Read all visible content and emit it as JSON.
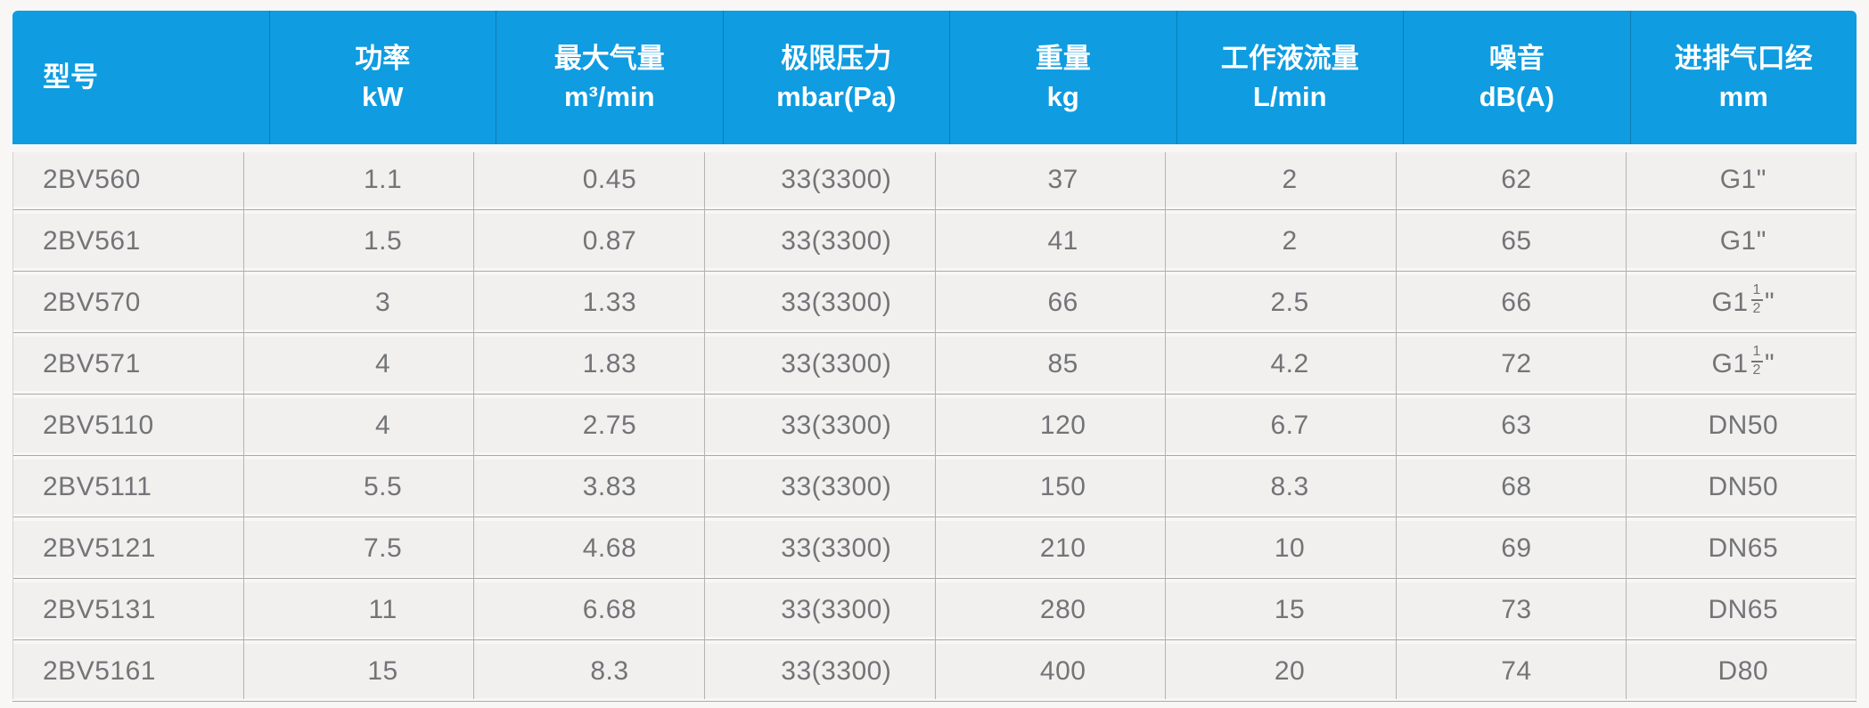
{
  "table": {
    "title_semantic": "2BV vacuum pump specification table",
    "columns": [
      {
        "id": "model",
        "line1": "型号",
        "line2": "",
        "align": "left"
      },
      {
        "id": "power",
        "line1": "功率",
        "line2": "kW",
        "align": "center"
      },
      {
        "id": "max-air-flow",
        "line1": "最大气量",
        "line2": "m³/min",
        "align": "center"
      },
      {
        "id": "ultimate-pressure",
        "line1": "极限压力",
        "line2": "mbar(Pa)",
        "align": "center"
      },
      {
        "id": "weight",
        "line1": "重量",
        "line2": "kg",
        "align": "center"
      },
      {
        "id": "working-liquid-flow",
        "line1": "工作液流量",
        "line2": "L/min",
        "align": "center"
      },
      {
        "id": "noise",
        "line1": "噪音",
        "line2": "dB(A)",
        "align": "center"
      },
      {
        "id": "port-diameter",
        "line1": "进排气口经",
        "line2": "mm",
        "align": "center"
      }
    ],
    "rows": [
      [
        "2BV560",
        "1.1",
        "0.45",
        "33(3300)",
        "37",
        "2",
        "62",
        "G1\""
      ],
      [
        "2BV561",
        "1.5",
        "0.87",
        "33(3300)",
        "41",
        "2",
        "65",
        "G1\""
      ],
      [
        "2BV570",
        "3",
        "1.33",
        "33(3300)",
        "66",
        "2.5",
        "66",
        "G1½\""
      ],
      [
        "2BV571",
        "4",
        "1.83",
        "33(3300)",
        "85",
        "4.2",
        "72",
        "G1½\""
      ],
      [
        "2BV5110",
        "4",
        "2.75",
        "33(3300)",
        "120",
        "6.7",
        "63",
        "DN50"
      ],
      [
        "2BV5111",
        "5.5",
        "3.83",
        "33(3300)",
        "150",
        "8.3",
        "68",
        "DN50"
      ],
      [
        "2BV5121",
        "7.5",
        "4.68",
        "33(3300)",
        "210",
        "10",
        "69",
        "DN65"
      ],
      [
        "2BV5131",
        "11",
        "6.68",
        "33(3300)",
        "280",
        "15",
        "73",
        "DN65"
      ],
      [
        "2BV5161",
        "15",
        "8.3",
        "33(3300)",
        "400",
        "20",
        "74",
        "D80"
      ]
    ]
  },
  "colors": {
    "page_bg": "#f8f7f5",
    "header_bg": "#0f9ce1",
    "header_text": "#ffffff",
    "header_divider": "#0e7cb4",
    "row_bg": "#f1f0ee",
    "data_text": "#737478",
    "grid_line": "#b5b4b2",
    "edge_line": "#d4d3d1",
    "row_sep_line": "#a9a9a9"
  }
}
